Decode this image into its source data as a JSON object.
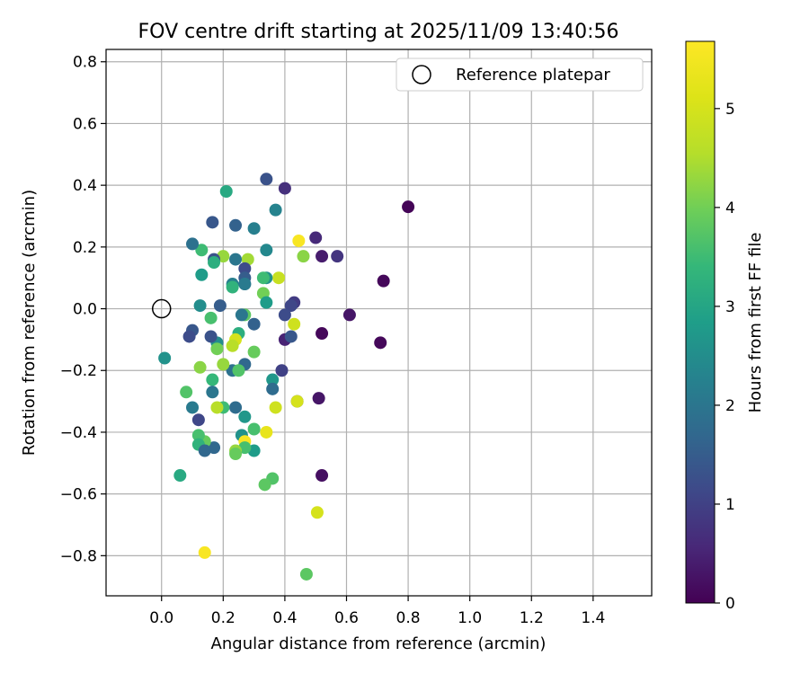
{
  "chart_data": {
    "type": "scatter",
    "title": "FOV centre drift starting at 2025/11/09 13:40:56",
    "xlabel": "Angular distance from reference (arcmin)",
    "ylabel": "Rotation from reference (arcmin)",
    "xlim": [
      -0.18,
      1.59
    ],
    "ylim": [
      -0.93,
      0.84
    ],
    "xticks": [
      0.0,
      0.2,
      0.4,
      0.6,
      0.8,
      1.0,
      1.2,
      1.4
    ],
    "xtick_labels": [
      "0.0",
      "0.2",
      "0.4",
      "0.6",
      "0.8",
      "1.0",
      "1.2",
      "1.4"
    ],
    "yticks": [
      -0.8,
      -0.6,
      -0.4,
      -0.2,
      0.0,
      0.2,
      0.4,
      0.6,
      0.8
    ],
    "ytick_labels": [
      "−0.8",
      "−0.6",
      "−0.4",
      "−0.2",
      "0.0",
      "0.2",
      "0.4",
      "0.6",
      "0.8"
    ],
    "grid": true,
    "legend": {
      "position": "top-right",
      "label": "Reference platepar"
    },
    "reference_point": {
      "x": 0.0,
      "y": 0.0
    },
    "colorbar": {
      "label": "Hours from first FF file",
      "min": 0,
      "max": 5.68,
      "ticks": [
        0,
        1,
        2,
        3,
        4,
        5
      ],
      "tick_labels": [
        "0",
        "1",
        "2",
        "3",
        "4",
        "5"
      ],
      "colormap": "viridis"
    },
    "points": [
      {
        "x": 0.8,
        "y": 0.33,
        "c": 0.05
      },
      {
        "x": 0.72,
        "y": 0.09,
        "c": 0.1
      },
      {
        "x": 0.71,
        "y": -0.11,
        "c": 0.1
      },
      {
        "x": 0.61,
        "y": -0.02,
        "c": 0.3
      },
      {
        "x": 0.52,
        "y": -0.08,
        "c": 0.1
      },
      {
        "x": 0.52,
        "y": -0.54,
        "c": 0.2
      },
      {
        "x": 0.51,
        "y": -0.29,
        "c": 0.3
      },
      {
        "x": 0.5,
        "y": 0.23,
        "c": 0.6
      },
      {
        "x": 0.52,
        "y": 0.17,
        "c": 0.4
      },
      {
        "x": 0.57,
        "y": 0.17,
        "c": 0.8
      },
      {
        "x": 0.4,
        "y": 0.39,
        "c": 0.7
      },
      {
        "x": 0.34,
        "y": 0.42,
        "c": 1.3
      },
      {
        "x": 0.4,
        "y": -0.1,
        "c": 0.5
      },
      {
        "x": 0.43,
        "y": 0.02,
        "c": 0.9
      },
      {
        "x": 0.42,
        "y": 0.01,
        "c": 1.1
      },
      {
        "x": 0.42,
        "y": -0.09,
        "c": 1.4
      },
      {
        "x": 0.4,
        "y": -0.02,
        "c": 1.2
      },
      {
        "x": 0.39,
        "y": -0.2,
        "c": 1.0
      },
      {
        "x": 0.44,
        "y": -0.3,
        "c": 0.9
      },
      {
        "x": 0.44,
        "y": -0.3,
        "c": 5.0
      },
      {
        "x": 0.445,
        "y": 0.22,
        "c": 5.6
      },
      {
        "x": 0.46,
        "y": 0.17,
        "c": 4.2
      },
      {
        "x": 0.43,
        "y": -0.05,
        "c": 4.9
      },
      {
        "x": 0.38,
        "y": 0.1,
        "c": 4.8
      },
      {
        "x": 0.37,
        "y": 0.32,
        "c": 2.3
      },
      {
        "x": 0.37,
        "y": -0.32,
        "c": 4.9
      },
      {
        "x": 0.36,
        "y": -0.23,
        "c": 2.7
      },
      {
        "x": 0.36,
        "y": -0.26,
        "c": 1.8
      },
      {
        "x": 0.36,
        "y": -0.55,
        "c": 3.7
      },
      {
        "x": 0.34,
        "y": 0.19,
        "c": 2.4
      },
      {
        "x": 0.34,
        "y": 0.1,
        "c": 2.6
      },
      {
        "x": 0.33,
        "y": 0.1,
        "c": 3.5
      },
      {
        "x": 0.33,
        "y": 0.05,
        "c": 4.0
      },
      {
        "x": 0.34,
        "y": 0.02,
        "c": 2.8
      },
      {
        "x": 0.34,
        "y": -0.4,
        "c": 5.3
      },
      {
        "x": 0.335,
        "y": -0.57,
        "c": 3.8
      },
      {
        "x": 0.3,
        "y": 0.26,
        "c": 2.2
      },
      {
        "x": 0.3,
        "y": -0.14,
        "c": 3.9
      },
      {
        "x": 0.3,
        "y": -0.05,
        "c": 1.6
      },
      {
        "x": 0.3,
        "y": -0.39,
        "c": 3.6
      },
      {
        "x": 0.3,
        "y": -0.46,
        "c": 2.8
      },
      {
        "x": 0.28,
        "y": 0.16,
        "c": 4.4
      },
      {
        "x": 0.27,
        "y": 0.13,
        "c": 1.2
      },
      {
        "x": 0.27,
        "y": 0.1,
        "c": 1.5
      },
      {
        "x": 0.27,
        "y": 0.08,
        "c": 1.9
      },
      {
        "x": 0.27,
        "y": 0.08,
        "c": 2.1
      },
      {
        "x": 0.27,
        "y": -0.02,
        "c": 3.8
      },
      {
        "x": 0.26,
        "y": -0.02,
        "c": 2.0
      },
      {
        "x": 0.27,
        "y": -0.18,
        "c": 1.7
      },
      {
        "x": 0.27,
        "y": -0.35,
        "c": 2.7
      },
      {
        "x": 0.26,
        "y": -0.41,
        "c": 2.6
      },
      {
        "x": 0.27,
        "y": -0.43,
        "c": 5.6
      },
      {
        "x": 0.27,
        "y": -0.45,
        "c": 3.6
      },
      {
        "x": 0.24,
        "y": 0.27,
        "c": 1.6
      },
      {
        "x": 0.24,
        "y": 0.16,
        "c": 2.0
      },
      {
        "x": 0.23,
        "y": 0.08,
        "c": 2.2
      },
      {
        "x": 0.23,
        "y": 0.07,
        "c": 3.3
      },
      {
        "x": 0.25,
        "y": -0.08,
        "c": 3.2
      },
      {
        "x": 0.24,
        "y": -0.1,
        "c": 5.0
      },
      {
        "x": 0.23,
        "y": -0.12,
        "c": 4.6
      },
      {
        "x": 0.23,
        "y": -0.2,
        "c": 1.9
      },
      {
        "x": 0.25,
        "y": -0.2,
        "c": 3.7
      },
      {
        "x": 0.24,
        "y": -0.32,
        "c": 1.8
      },
      {
        "x": 0.24,
        "y": -0.46,
        "c": 4.3
      },
      {
        "x": 0.24,
        "y": -0.47,
        "c": 3.9
      },
      {
        "x": 0.21,
        "y": 0.38,
        "c": 3.1
      },
      {
        "x": 0.2,
        "y": 0.17,
        "c": 4.3
      },
      {
        "x": 0.19,
        "y": 0.01,
        "c": 1.5
      },
      {
        "x": 0.18,
        "y": -0.11,
        "c": 2.5
      },
      {
        "x": 0.18,
        "y": -0.13,
        "c": 4.0
      },
      {
        "x": 0.2,
        "y": -0.18,
        "c": 4.3
      },
      {
        "x": 0.2,
        "y": -0.32,
        "c": 3.5
      },
      {
        "x": 0.18,
        "y": -0.32,
        "c": 4.6
      },
      {
        "x": 0.165,
        "y": 0.28,
        "c": 1.4
      },
      {
        "x": 0.17,
        "y": 0.16,
        "c": 1.3
      },
      {
        "x": 0.17,
        "y": 0.15,
        "c": 3.2
      },
      {
        "x": 0.16,
        "y": -0.03,
        "c": 3.6
      },
      {
        "x": 0.16,
        "y": -0.09,
        "c": 1.3
      },
      {
        "x": 0.165,
        "y": -0.23,
        "c": 3.4
      },
      {
        "x": 0.165,
        "y": -0.27,
        "c": 2.0
      },
      {
        "x": 0.17,
        "y": -0.45,
        "c": 1.7
      },
      {
        "x": 0.13,
        "y": 0.19,
        "c": 3.5
      },
      {
        "x": 0.13,
        "y": 0.11,
        "c": 2.8
      },
      {
        "x": 0.125,
        "y": 0.01,
        "c": 2.5
      },
      {
        "x": 0.125,
        "y": -0.19,
        "c": 4.2
      },
      {
        "x": 0.14,
        "y": -0.43,
        "c": 3.9
      },
      {
        "x": 0.12,
        "y": -0.41,
        "c": 3.6
      },
      {
        "x": 0.12,
        "y": -0.44,
        "c": 3.3
      },
      {
        "x": 0.14,
        "y": -0.46,
        "c": 1.7
      },
      {
        "x": 0.12,
        "y": -0.36,
        "c": 1.1
      },
      {
        "x": 0.14,
        "y": -0.79,
        "c": 5.6
      },
      {
        "x": 0.1,
        "y": 0.21,
        "c": 1.9
      },
      {
        "x": 0.1,
        "y": -0.07,
        "c": 1.4
      },
      {
        "x": 0.09,
        "y": -0.09,
        "c": 1.2
      },
      {
        "x": 0.1,
        "y": -0.32,
        "c": 2.1
      },
      {
        "x": 0.08,
        "y": -0.27,
        "c": 3.7
      },
      {
        "x": 0.06,
        "y": -0.54,
        "c": 3.1
      },
      {
        "x": 0.01,
        "y": -0.16,
        "c": 2.6
      },
      {
        "x": 0.505,
        "y": -0.66,
        "c": 5.0
      },
      {
        "x": 0.47,
        "y": -0.86,
        "c": 3.8
      }
    ]
  }
}
